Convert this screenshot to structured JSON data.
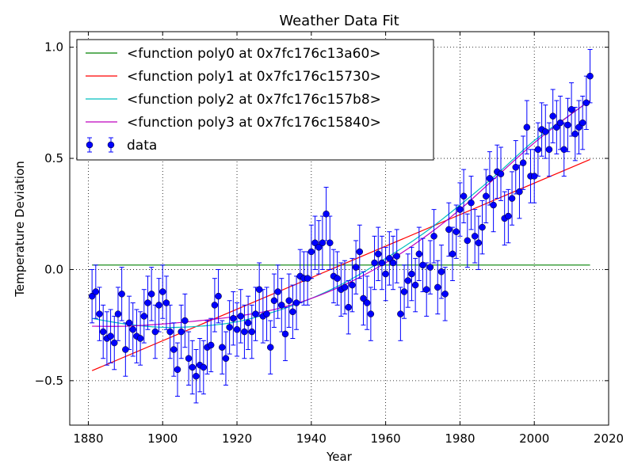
{
  "chart_data": {
    "type": "scatter",
    "title": "Weather Data Fit",
    "xlabel": "Year",
    "ylabel": "Temperature Deviation",
    "xlim": [
      1875,
      2020
    ],
    "ylim": [
      -0.7,
      1.07
    ],
    "xticks": [
      1880,
      1900,
      1920,
      1940,
      1960,
      1980,
      2000,
      2020
    ],
    "yticks": [
      -0.5,
      0.0,
      0.5,
      1.0
    ],
    "grid": true,
    "legend_position": "top-left",
    "legend": [
      {
        "label": "<function poly0 at 0x7fc176c13a60>",
        "color": "#008000",
        "kind": "line"
      },
      {
        "label": "<function poly1 at 0x7fc176c15730>",
        "color": "#ff0000",
        "kind": "line"
      },
      {
        "label": "<function poly2 at 0x7fc176c157b8>",
        "color": "#00bfbf",
        "kind": "line"
      },
      {
        "label": "<function poly3 at 0x7fc176c15840>",
        "color": "#bf00bf",
        "kind": "line"
      },
      {
        "label": "data",
        "color": "#0000ff",
        "kind": "errorbar"
      }
    ],
    "data": {
      "name": "data",
      "color": "#0000ff",
      "x": [
        1881,
        1882,
        1883,
        1884,
        1885,
        1886,
        1887,
        1888,
        1889,
        1890,
        1891,
        1892,
        1893,
        1894,
        1895,
        1896,
        1897,
        1898,
        1899,
        1900,
        1901,
        1902,
        1903,
        1904,
        1905,
        1906,
        1907,
        1908,
        1909,
        1910,
        1911,
        1912,
        1913,
        1914,
        1915,
        1916,
        1917,
        1918,
        1919,
        1920,
        1921,
        1922,
        1923,
        1924,
        1925,
        1926,
        1927,
        1928,
        1929,
        1930,
        1931,
        1932,
        1933,
        1934,
        1935,
        1936,
        1937,
        1938,
        1939,
        1940,
        1941,
        1942,
        1943,
        1944,
        1945,
        1946,
        1947,
        1948,
        1949,
        1950,
        1951,
        1952,
        1953,
        1954,
        1955,
        1956,
        1957,
        1958,
        1959,
        1960,
        1961,
        1962,
        1963,
        1964,
        1965,
        1966,
        1967,
        1968,
        1969,
        1970,
        1971,
        1972,
        1973,
        1974,
        1975,
        1976,
        1977,
        1978,
        1979,
        1980,
        1981,
        1982,
        1983,
        1984,
        1985,
        1986,
        1987,
        1988,
        1989,
        1990,
        1991,
        1992,
        1993,
        1994,
        1995,
        1996,
        1997,
        1998,
        1999,
        2000,
        2001,
        2002,
        2003,
        2004,
        2005,
        2006,
        2007,
        2008,
        2009,
        2010,
        2011,
        2012,
        2013,
        2014,
        2015
      ],
      "y": [
        -0.12,
        -0.1,
        -0.2,
        -0.28,
        -0.31,
        -0.3,
        -0.33,
        -0.2,
        -0.11,
        -0.36,
        -0.24,
        -0.27,
        -0.3,
        -0.31,
        -0.21,
        -0.15,
        -0.11,
        -0.28,
        -0.16,
        -0.1,
        -0.15,
        -0.28,
        -0.36,
        -0.45,
        -0.28,
        -0.23,
        -0.4,
        -0.44,
        -0.48,
        -0.43,
        -0.44,
        -0.35,
        -0.34,
        -0.16,
        -0.12,
        -0.35,
        -0.4,
        -0.26,
        -0.22,
        -0.27,
        -0.21,
        -0.28,
        -0.24,
        -0.28,
        -0.2,
        -0.09,
        -0.21,
        -0.2,
        -0.35,
        -0.14,
        -0.1,
        -0.16,
        -0.29,
        -0.14,
        -0.19,
        -0.15,
        -0.03,
        -0.04,
        -0.04,
        0.08,
        0.12,
        0.1,
        0.12,
        0.25,
        0.12,
        -0.03,
        -0.04,
        -0.09,
        -0.08,
        -0.17,
        -0.07,
        0.01,
        0.08,
        -0.13,
        -0.15,
        -0.2,
        0.03,
        0.07,
        0.03,
        -0.02,
        0.05,
        0.03,
        0.06,
        -0.2,
        -0.1,
        -0.05,
        -0.02,
        -0.07,
        0.07,
        0.02,
        -0.09,
        0.01,
        0.15,
        -0.08,
        -0.01,
        -0.11,
        0.18,
        0.07,
        0.17,
        0.27,
        0.33,
        0.13,
        0.3,
        0.15,
        0.12,
        0.19,
        0.33,
        0.41,
        0.29,
        0.44,
        0.43,
        0.23,
        0.24,
        0.32,
        0.46,
        0.35,
        0.48,
        0.64,
        0.42,
        0.42,
        0.54,
        0.63,
        0.62,
        0.54,
        0.69,
        0.64,
        0.66,
        0.54,
        0.65,
        0.72,
        0.61,
        0.64,
        0.66,
        0.75,
        0.87
      ],
      "error": 0.12
    },
    "fits": [
      {
        "name": "poly0",
        "color": "#008000",
        "x": [
          1881,
          2015
        ],
        "y": [
          0.02,
          0.02
        ]
      },
      {
        "name": "poly1",
        "color": "#ff0000",
        "x": [
          1881,
          2015
        ],
        "y": [
          -0.455,
          0.495
        ]
      },
      {
        "name": "poly2",
        "color": "#00bfbf",
        "x": [
          1881,
          1890,
          1900,
          1910,
          1920,
          1930,
          1940,
          1950,
          1960,
          1970,
          1980,
          1990,
          2000,
          2010,
          2015
        ],
        "y": [
          -0.22,
          -0.245,
          -0.26,
          -0.255,
          -0.235,
          -0.19,
          -0.13,
          -0.05,
          0.05,
          0.16,
          0.29,
          0.43,
          0.58,
          0.7,
          0.76
        ]
      },
      {
        "name": "poly3",
        "color": "#bf00bf",
        "x": [
          1881,
          1890,
          1900,
          1910,
          1920,
          1930,
          1940,
          1950,
          1960,
          1970,
          1980,
          1990,
          2000,
          2010,
          2015
        ],
        "y": [
          -0.255,
          -0.255,
          -0.245,
          -0.23,
          -0.21,
          -0.18,
          -0.13,
          -0.06,
          0.03,
          0.14,
          0.27,
          0.42,
          0.57,
          0.7,
          0.76
        ]
      }
    ]
  }
}
